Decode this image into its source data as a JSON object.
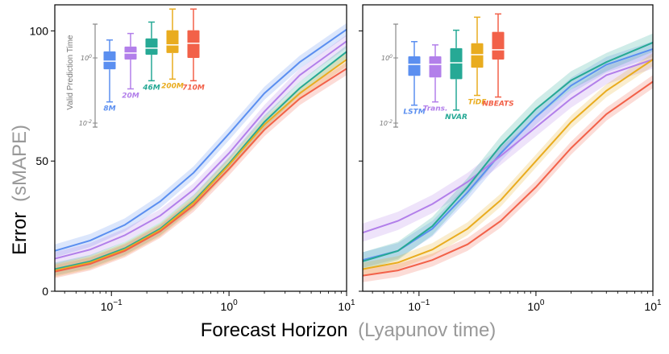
{
  "chart_data": [
    {
      "type": "line",
      "panel": "left",
      "xlabel": "Forecast Horizon",
      "xlabel_sub": "(Lyapunov time)",
      "ylabel": "Error",
      "ylabel_sub": "(sMAPE)",
      "xscale": "log",
      "xlim": [
        0.033,
        10
      ],
      "ylim": [
        0,
        110
      ],
      "yticks": [
        0,
        50,
        100
      ],
      "xticks": [
        {
          "value": 0.1,
          "base": "10",
          "exp": "−1"
        },
        {
          "value": 1,
          "base": "10",
          "exp": "0"
        },
        {
          "value": 10,
          "base": "10",
          "exp": "1"
        }
      ],
      "x": [
        0.033,
        0.066,
        0.13,
        0.26,
        0.5,
        1.0,
        2.0,
        4.0,
        10.0
      ],
      "series": [
        {
          "name": "8M",
          "color": "#5b8ff0",
          "values": [
            15.5,
            19.5,
            25.5,
            34.5,
            45.5,
            60.5,
            76.0,
            88.0,
            100.5
          ],
          "band": 2.5
        },
        {
          "name": "20M",
          "color": "#b27fea",
          "values": [
            12.5,
            16.0,
            21.5,
            29.0,
            39.0,
            53.0,
            69.0,
            83.0,
            96.0
          ],
          "band": 2.5
        },
        {
          "name": "46M",
          "color": "#26a995",
          "values": [
            8.5,
            11.5,
            16.5,
            24.0,
            34.5,
            49.0,
            65.0,
            78.0,
            92.0
          ],
          "band": 2.5
        },
        {
          "name": "200M",
          "color": "#e9ac1f",
          "values": [
            8.0,
            11.0,
            16.0,
            23.5,
            34.0,
            48.5,
            64.0,
            76.0,
            89.0
          ],
          "band": 2.5
        },
        {
          "name": "710M",
          "color": "#f26149",
          "values": [
            7.5,
            10.5,
            15.5,
            23.0,
            33.0,
            47.0,
            62.0,
            74.0,
            85.5
          ],
          "band": 2.5
        }
      ],
      "inset": {
        "title": "Valid Prediction Time",
        "yticks": [
          {
            "base": "10",
            "exp": "0"
          },
          {
            "base": "10",
            "exp": "-2"
          }
        ],
        "boxes": [
          {
            "label": "8M",
            "color": "#5b8ff0",
            "q1": -0.35,
            "median": -0.1,
            "q3": 0.2,
            "wlo": -1.35,
            "whi": 0.55
          },
          {
            "label": "20M",
            "color": "#b27fea",
            "q1": -0.05,
            "median": 0.15,
            "q3": 0.35,
            "wlo": -0.95,
            "whi": 0.75
          },
          {
            "label": "46M",
            "color": "#26a995",
            "q1": 0.1,
            "median": 0.3,
            "q3": 0.6,
            "wlo": -0.7,
            "whi": 1.1
          },
          {
            "label": "200M",
            "color": "#e9ac1f",
            "q1": 0.15,
            "median": 0.4,
            "q3": 0.85,
            "wlo": -0.65,
            "whi": 1.5
          },
          {
            "label": "710M",
            "color": "#f26149",
            "q1": 0.0,
            "median": 0.45,
            "q3": 0.85,
            "wlo": -0.7,
            "whi": 1.5
          }
        ]
      }
    },
    {
      "type": "line",
      "panel": "right",
      "xscale": "log",
      "xlim": [
        0.033,
        10
      ],
      "ylim": [
        0,
        110
      ],
      "yticks": [
        0,
        50,
        100
      ],
      "xticks": [
        {
          "value": 0.1,
          "base": "10",
          "exp": "−1"
        },
        {
          "value": 1,
          "base": "10",
          "exp": "0"
        },
        {
          "value": 10,
          "base": "10",
          "exp": "1"
        }
      ],
      "x": [
        0.033,
        0.066,
        0.13,
        0.26,
        0.5,
        1.0,
        2.0,
        4.0,
        10.0
      ],
      "series": [
        {
          "name": "LSTM",
          "color": "#5b8ff0",
          "values": [
            12.0,
            15.5,
            24.0,
            38.0,
            53.0,
            67.0,
            79.0,
            87.0,
            93.0
          ],
          "band": 3.0
        },
        {
          "name": "Trans.",
          "color": "#b27fea",
          "values": [
            22.5,
            27.0,
            33.5,
            42.0,
            52.0,
            63.0,
            74.0,
            83.0,
            89.0
          ],
          "band": 3.5
        },
        {
          "name": "NVAR",
          "color": "#26a995",
          "values": [
            11.5,
            15.5,
            25.0,
            40.0,
            56.0,
            70.0,
            81.0,
            88.0,
            95.5
          ],
          "band": 3.5
        },
        {
          "name": "TiDE",
          "color": "#e9ac1f",
          "values": [
            8.5,
            11.0,
            16.0,
            24.0,
            35.0,
            50.0,
            65.0,
            77.0,
            89.0
          ],
          "band": 2.5
        },
        {
          "name": "NBEATS",
          "color": "#f26149",
          "values": [
            6.0,
            8.0,
            12.0,
            18.0,
            27.0,
            40.0,
            55.0,
            68.0,
            80.5
          ],
          "band": 2.5
        }
      ],
      "inset": {
        "yticks": [
          {
            "base": "10",
            "exp": "0"
          },
          {
            "base": "10",
            "exp": "-2"
          }
        ],
        "boxes": [
          {
            "label": "LSTM",
            "color": "#5b8ff0",
            "q1": -0.55,
            "median": -0.2,
            "q3": 0.05,
            "wlo": -1.45,
            "whi": 0.5
          },
          {
            "label": "Trans.",
            "color": "#b27fea",
            "q1": -0.6,
            "median": -0.2,
            "q3": 0.05,
            "wlo": -1.35,
            "whi": 0.4
          },
          {
            "label": "NVAR",
            "color": "#26a995",
            "q1": -0.65,
            "median": -0.15,
            "q3": 0.3,
            "wlo": -1.6,
            "whi": 0.85
          },
          {
            "label": "TiDE",
            "color": "#e9ac1f",
            "q1": -0.3,
            "median": 0.1,
            "q3": 0.45,
            "wlo": -1.15,
            "whi": 1.25
          },
          {
            "label": "NBEATS",
            "color": "#f26149",
            "q1": -0.05,
            "median": 0.25,
            "q3": 0.8,
            "wlo": -1.2,
            "whi": 1.35
          }
        ]
      }
    }
  ]
}
